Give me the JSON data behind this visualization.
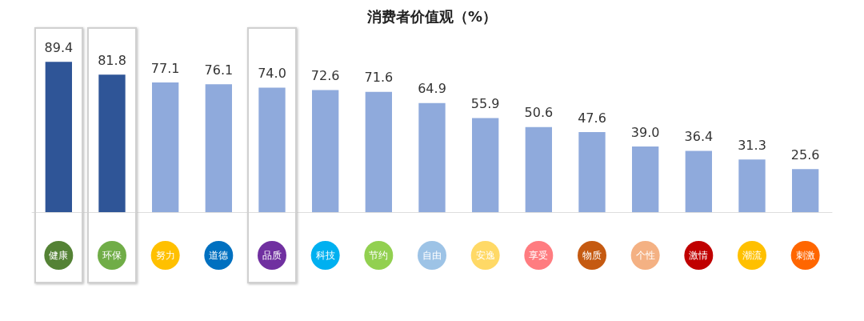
{
  "chart_data": {
    "type": "bar",
    "title": "消费者价值观（%）",
    "categories": [
      "健康",
      "环保",
      "努力",
      "道德",
      "品质",
      "科技",
      "节约",
      "自由",
      "安逸",
      "享受",
      "物质",
      "个性",
      "激情",
      "潮流",
      "刺激"
    ],
    "values": [
      89.4,
      81.8,
      77.1,
      76.1,
      74.0,
      72.6,
      71.6,
      64.9,
      55.9,
      50.6,
      47.6,
      39.0,
      36.4,
      31.3,
      25.6
    ],
    "colors": [
      "#2f5597",
      "#2f5597",
      "#8faadc",
      "#8faadc",
      "#8faadc",
      "#8faadc",
      "#8faadc",
      "#8faadc",
      "#8faadc",
      "#8faadc",
      "#8faadc",
      "#8faadc",
      "#8faadc",
      "#8faadc",
      "#8faadc"
    ],
    "value_labels": [
      "89.4",
      "81.8",
      "77.1",
      "76.1",
      "74.0",
      "72.6",
      "71.6",
      "64.9",
      "55.9",
      "50.6",
      "47.6",
      "39.0",
      "36.4",
      "31.3",
      "25.6"
    ]
  }
}
